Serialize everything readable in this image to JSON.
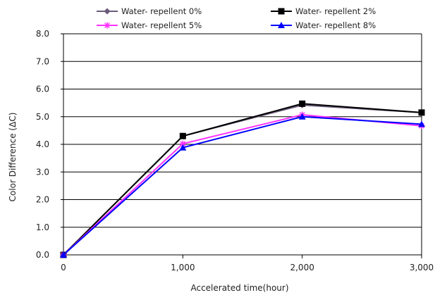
{
  "chart_data": {
    "type": "line",
    "title": "",
    "xlabel": "Accelerated   time(hour)",
    "ylabel": "Color Difference (ΔC)",
    "x": [
      0,
      1000,
      2000,
      3000
    ],
    "x_tick_labels": [
      "0",
      "1,000",
      "2,000",
      "3,000"
    ],
    "xlim": [
      0,
      3000
    ],
    "ylim": [
      0,
      8
    ],
    "y_tick_labels": [
      "0.0",
      "1.0",
      "2.0",
      "3.0",
      "4.0",
      "5.0",
      "6.0",
      "7.0",
      "8.0"
    ],
    "grid": "horizontal",
    "legend_position": "top",
    "series": [
      {
        "name": "Water- repellent 0%",
        "values": [
          0,
          4.3,
          5.42,
          5.15
        ],
        "color": "#6b5b7b",
        "marker": "diamond"
      },
      {
        "name": "Water- repellent 2%",
        "values": [
          0,
          4.3,
          5.47,
          5.15
        ],
        "color": "#000000",
        "marker": "square"
      },
      {
        "name": "Water- repellent 5%",
        "values": [
          0,
          4.02,
          5.07,
          4.67
        ],
        "color": "#ff33ff",
        "marker": "star"
      },
      {
        "name": "Water- repellent 8%",
        "values": [
          0,
          3.88,
          5.0,
          4.73
        ],
        "color": "#0000ff",
        "marker": "triangle"
      }
    ]
  }
}
